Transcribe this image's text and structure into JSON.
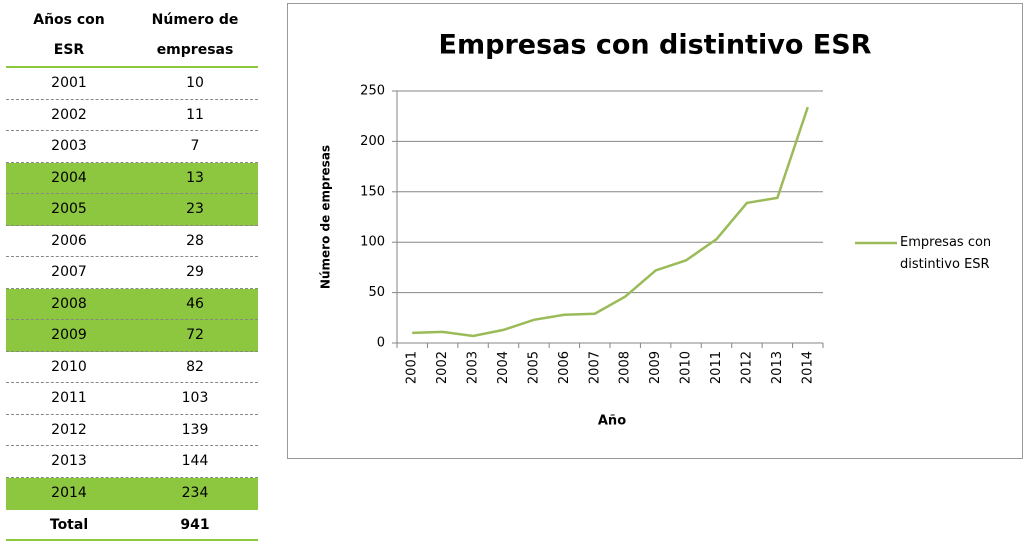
{
  "table": {
    "header": [
      "Años con ESR",
      "Número de empresas"
    ],
    "rows": [
      [
        2001,
        10
      ],
      [
        2002,
        11
      ],
      [
        2003,
        7
      ],
      [
        2004,
        13
      ],
      [
        2005,
        23
      ],
      [
        2006,
        28
      ],
      [
        2007,
        29
      ],
      [
        2008,
        46
      ],
      [
        2009,
        72
      ],
      [
        2010,
        82
      ],
      [
        2011,
        103
      ],
      [
        2012,
        139
      ],
      [
        2013,
        144
      ],
      [
        2014,
        234
      ]
    ],
    "total": [
      "Total",
      941
    ],
    "highlighted_rows": [
      3,
      4,
      7,
      8,
      13
    ],
    "highlight_color": "#8dc63f"
  },
  "chart_data": {
    "type": "line",
    "title": "Empresas con distintivo ESR",
    "xlabel": "Año",
    "ylabel": "Número de empresas",
    "categories": [
      "2001",
      "2002",
      "2003",
      "2004",
      "2005",
      "2006",
      "2007",
      "2008",
      "2009",
      "2010",
      "2011",
      "2012",
      "2013",
      "2014"
    ],
    "series": [
      {
        "name": "Empresas con distintivo ESR",
        "color": "#9bbb59",
        "values": [
          10,
          11,
          7,
          13,
          23,
          28,
          29,
          46,
          72,
          82,
          103,
          139,
          144,
          234
        ]
      }
    ],
    "ylim": [
      0,
      250
    ],
    "yticks": [
      0,
      50,
      100,
      150,
      200,
      250
    ],
    "grid": true,
    "legend": "right"
  }
}
